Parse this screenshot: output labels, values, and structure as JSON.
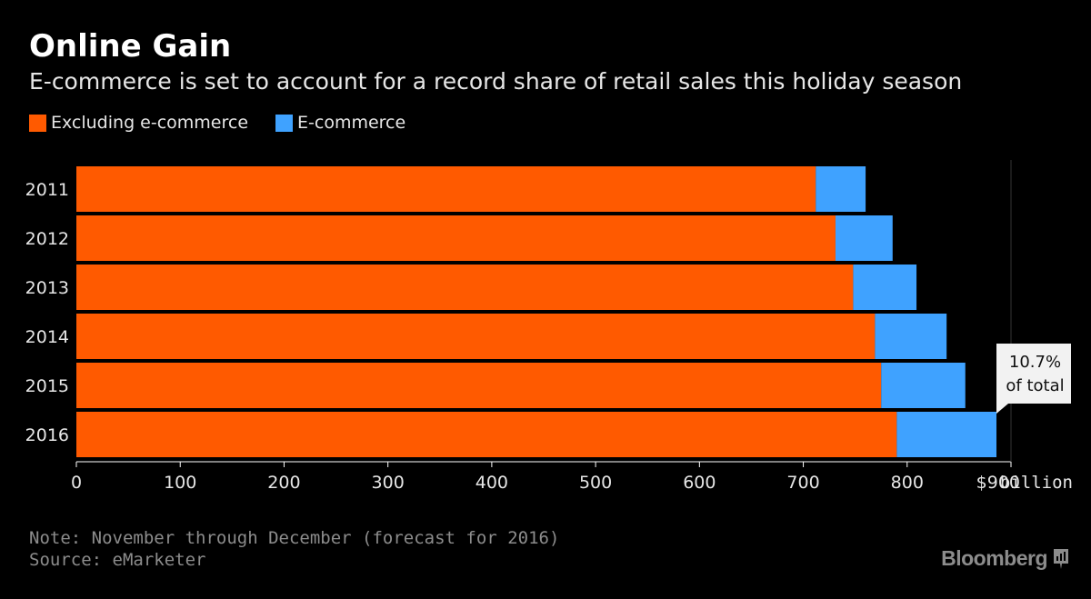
{
  "header": {
    "title": "Online Gain",
    "subtitle": "E-commerce is set to account for a record share of retail sales this holiday season"
  },
  "legend": {
    "items": [
      {
        "label": "Excluding e-commerce",
        "color": "#ff5a00"
      },
      {
        "label": "E-commerce",
        "color": "#3fa2ff"
      }
    ]
  },
  "chart_data": {
    "type": "bar",
    "orientation": "horizontal",
    "stacked": true,
    "categories": [
      "2011",
      "2012",
      "2013",
      "2014",
      "2015",
      "2016"
    ],
    "series": [
      {
        "name": "Excluding e-commerce",
        "color": "#ff5a00",
        "values": [
          712,
          731,
          748,
          769,
          775,
          790
        ]
      },
      {
        "name": "E-commerce",
        "color": "#3fa2ff",
        "values": [
          48,
          55,
          61,
          69,
          81,
          96
        ]
      }
    ],
    "xlim": [
      0,
      900
    ],
    "x_ticks": [
      "0",
      "100",
      "200",
      "300",
      "400",
      "500",
      "600",
      "700",
      "800",
      "$900"
    ],
    "x_unit": "billion",
    "grid": false,
    "annotation": {
      "category": "2016",
      "lines": [
        "10.7%",
        "of total"
      ]
    }
  },
  "footer": {
    "note": "Note: November through December (forecast for 2016)",
    "source": "Source: eMarketer",
    "brand": "Bloomberg"
  }
}
